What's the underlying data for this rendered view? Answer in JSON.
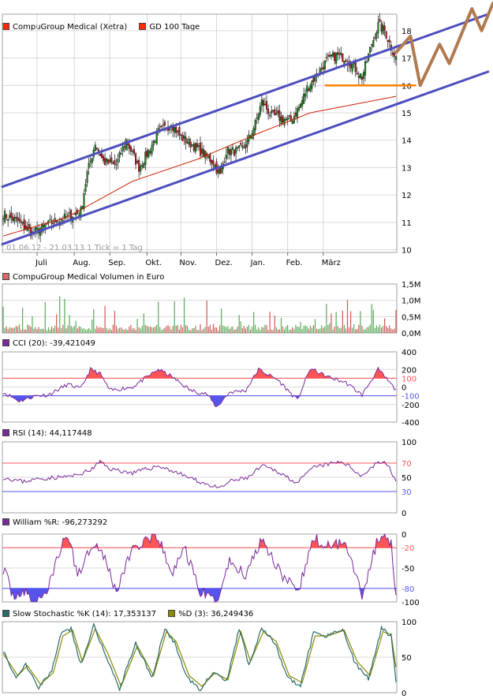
{
  "colors": {
    "grid": "#d9d9d9",
    "frame": "#a0a0a0",
    "up": "#1a7a1a",
    "down": "#b01a1a",
    "ma": "#cc2200",
    "channel": "#4d4dbf",
    "support": "#ff8000",
    "projection": "#b07a50",
    "indicator": "#7a2a9a",
    "overbought": "#ff5555",
    "oversold": "#5555ee",
    "stochK": "#2a6a6a",
    "stochD": "#8a8a00"
  },
  "chart_data": [
    {
      "type": "candlestick",
      "legend": [
        {
          "name": "CompuGroup Medical (Xetra)",
          "color": "#ff2a00"
        },
        {
          "name": "GD 100 Tage",
          "color": "#ff2a00"
        }
      ],
      "x_ticks": [
        "Juli",
        "Aug.",
        "Sep.",
        "Okt.",
        "Nov.",
        "Dez.",
        "Jan.",
        "Feb.",
        "März"
      ],
      "y_ticks": [
        "10",
        "11",
        "12",
        "13",
        "14",
        "15",
        "16",
        "17",
        "18"
      ],
      "ylim": [
        9.9,
        18.6
      ],
      "footer": "01.06.12 - 21.03.13    1 Tick = 1 Tag",
      "close_anchors": [
        [
          0,
          11.3
        ],
        [
          10,
          11.0
        ],
        [
          18,
          10.6
        ],
        [
          30,
          11.0
        ],
        [
          40,
          11.2
        ],
        [
          48,
          11.4
        ],
        [
          52,
          12.8
        ],
        [
          57,
          13.9
        ],
        [
          62,
          13.2
        ],
        [
          70,
          13.1
        ],
        [
          76,
          14.0
        ],
        [
          84,
          13.0
        ],
        [
          90,
          13.6
        ],
        [
          96,
          14.3
        ],
        [
          104,
          14.6
        ],
        [
          110,
          14.1
        ],
        [
          118,
          13.8
        ],
        [
          124,
          13.5
        ],
        [
          130,
          13.2
        ],
        [
          134,
          12.7
        ],
        [
          138,
          13.6
        ],
        [
          145,
          13.6
        ],
        [
          150,
          13.8
        ],
        [
          156,
          14.6
        ],
        [
          160,
          15.4
        ],
        [
          166,
          14.9
        ],
        [
          172,
          14.8
        ],
        [
          178,
          14.7
        ],
        [
          184,
          15.3
        ],
        [
          188,
          15.9
        ],
        [
          194,
          16.4
        ],
        [
          200,
          16.9
        ],
        [
          206,
          17.1
        ],
        [
          212,
          17.0
        ],
        [
          218,
          16.6
        ],
        [
          222,
          16.3
        ],
        [
          228,
          17.5
        ],
        [
          232,
          18.2
        ],
        [
          236,
          18.0
        ],
        [
          240,
          17.4
        ],
        [
          243,
          17.0
        ]
      ],
      "ma_anchors": [
        [
          0,
          10.5
        ],
        [
          40,
          11.2
        ],
        [
          80,
          12.5
        ],
        [
          120,
          13.3
        ],
        [
          160,
          14.3
        ],
        [
          190,
          15.0
        ],
        [
          243,
          15.6
        ]
      ],
      "channel_upper": [
        [
          0,
          12.3
        ],
        [
          300,
          18.6
        ]
      ],
      "channel_lower": [
        [
          0,
          10.2
        ],
        [
          300,
          16.5
        ]
      ],
      "support_line": [
        [
          200,
          16.0
        ],
        [
          255,
          16.0
        ]
      ],
      "projection": [
        [
          243,
          17.2
        ],
        [
          252,
          17.8
        ],
        [
          258,
          16.0
        ],
        [
          270,
          17.5
        ],
        [
          276,
          16.8
        ],
        [
          290,
          18.8
        ],
        [
          296,
          18.0
        ],
        [
          303,
          19.0
        ]
      ]
    },
    {
      "type": "bar",
      "legend": [
        {
          "name": "CompuGroup Medical Volumen in Euro",
          "color": "#dd6666"
        }
      ],
      "y_ticks": [
        "1,5M",
        "1,0M",
        "0,5M",
        "0,0M"
      ],
      "ylim": [
        0,
        1.5
      ],
      "unit": "M EUR"
    },
    {
      "type": "line",
      "legend": [
        {
          "name": "CCI (20): -39,421049",
          "color": "#7a2a9a"
        }
      ],
      "y_ticks": [
        "400",
        "200",
        "100",
        "0",
        "-100",
        "-200",
        "-400"
      ],
      "ylim": [
        -400,
        400
      ],
      "levels": [
        100,
        -100
      ],
      "anchors": [
        [
          0,
          -60
        ],
        [
          10,
          -160
        ],
        [
          20,
          -100
        ],
        [
          28,
          -90
        ],
        [
          40,
          30
        ],
        [
          48,
          -20
        ],
        [
          54,
          200
        ],
        [
          60,
          150
        ],
        [
          66,
          -40
        ],
        [
          80,
          0
        ],
        [
          96,
          200
        ],
        [
          104,
          120
        ],
        [
          116,
          -40
        ],
        [
          126,
          -80
        ],
        [
          132,
          -230
        ],
        [
          140,
          -60
        ],
        [
          150,
          -40
        ],
        [
          158,
          200
        ],
        [
          170,
          80
        ],
        [
          182,
          -150
        ],
        [
          190,
          210
        ],
        [
          200,
          120
        ],
        [
          212,
          50
        ],
        [
          222,
          -90
        ],
        [
          232,
          200
        ],
        [
          240,
          30
        ],
        [
          243,
          -39
        ]
      ]
    },
    {
      "type": "line",
      "legend": [
        {
          "name": "RSI (14): 44,117448",
          "color": "#7a2a9a"
        }
      ],
      "y_ticks": [
        "100",
        "70",
        "50",
        "30",
        "0"
      ],
      "ylim": [
        0,
        100
      ],
      "levels": [
        70,
        30
      ],
      "anchors": [
        [
          0,
          50
        ],
        [
          12,
          44
        ],
        [
          22,
          48
        ],
        [
          34,
          50
        ],
        [
          44,
          52
        ],
        [
          54,
          60
        ],
        [
          60,
          72
        ],
        [
          66,
          62
        ],
        [
          80,
          56
        ],
        [
          96,
          66
        ],
        [
          106,
          58
        ],
        [
          120,
          45
        ],
        [
          134,
          34
        ],
        [
          140,
          44
        ],
        [
          152,
          50
        ],
        [
          160,
          66
        ],
        [
          170,
          58
        ],
        [
          182,
          42
        ],
        [
          192,
          64
        ],
        [
          200,
          68
        ],
        [
          210,
          72
        ],
        [
          222,
          52
        ],
        [
          232,
          72
        ],
        [
          238,
          68
        ],
        [
          243,
          44
        ]
      ]
    },
    {
      "type": "line",
      "legend": [
        {
          "name": "William %R: -96,273292",
          "color": "#7a2a9a"
        }
      ],
      "y_ticks": [
        "0",
        "-20",
        "-50",
        "-80",
        "-100"
      ],
      "ylim": [
        -100,
        0
      ],
      "levels": [
        -20,
        -80
      ],
      "anchors": [
        [
          0,
          -50
        ],
        [
          6,
          -90
        ],
        [
          12,
          -85
        ],
        [
          20,
          -100
        ],
        [
          28,
          -80
        ],
        [
          34,
          -30
        ],
        [
          40,
          0
        ],
        [
          46,
          -60
        ],
        [
          56,
          -10
        ],
        [
          62,
          -30
        ],
        [
          70,
          -85
        ],
        [
          80,
          -20
        ],
        [
          96,
          -5
        ],
        [
          104,
          -60
        ],
        [
          112,
          -20
        ],
        [
          122,
          -85
        ],
        [
          132,
          -100
        ],
        [
          140,
          -40
        ],
        [
          150,
          -60
        ],
        [
          160,
          -5
        ],
        [
          170,
          -50
        ],
        [
          182,
          -90
        ],
        [
          192,
          -5
        ],
        [
          200,
          -20
        ],
        [
          212,
          -10
        ],
        [
          222,
          -90
        ],
        [
          232,
          -5
        ],
        [
          240,
          -10
        ],
        [
          243,
          -96
        ]
      ]
    },
    {
      "type": "line",
      "legend": [
        {
          "name": "Slow Stochastic %K (14): 17,353137",
          "color": "#2a6a6a"
        },
        {
          "name": "%D (3): 36,249436",
          "color": "#8a8a00"
        }
      ],
      "y_ticks": [
        "100",
        "50",
        "0"
      ],
      "ylim": [
        0,
        100
      ],
      "k_anchors": [
        [
          0,
          60
        ],
        [
          8,
          20
        ],
        [
          14,
          40
        ],
        [
          22,
          8
        ],
        [
          30,
          30
        ],
        [
          36,
          85
        ],
        [
          42,
          90
        ],
        [
          48,
          40
        ],
        [
          56,
          95
        ],
        [
          64,
          50
        ],
        [
          72,
          5
        ],
        [
          82,
          70
        ],
        [
          92,
          20
        ],
        [
          100,
          90
        ],
        [
          106,
          70
        ],
        [
          114,
          20
        ],
        [
          122,
          5
        ],
        [
          130,
          30
        ],
        [
          138,
          15
        ],
        [
          146,
          90
        ],
        [
          152,
          40
        ],
        [
          160,
          90
        ],
        [
          168,
          70
        ],
        [
          176,
          20
        ],
        [
          184,
          10
        ],
        [
          192,
          85
        ],
        [
          200,
          80
        ],
        [
          210,
          90
        ],
        [
          218,
          40
        ],
        [
          226,
          20
        ],
        [
          234,
          90
        ],
        [
          240,
          80
        ],
        [
          243,
          17
        ]
      ],
      "d_anchors": [
        [
          0,
          55
        ],
        [
          9,
          24
        ],
        [
          15,
          38
        ],
        [
          23,
          12
        ],
        [
          31,
          28
        ],
        [
          37,
          80
        ],
        [
          43,
          88
        ],
        [
          49,
          44
        ],
        [
          57,
          90
        ],
        [
          65,
          54
        ],
        [
          73,
          9
        ],
        [
          83,
          66
        ],
        [
          93,
          24
        ],
        [
          101,
          86
        ],
        [
          107,
          72
        ],
        [
          115,
          24
        ],
        [
          123,
          9
        ],
        [
          131,
          28
        ],
        [
          139,
          18
        ],
        [
          147,
          86
        ],
        [
          153,
          44
        ],
        [
          161,
          86
        ],
        [
          169,
          72
        ],
        [
          177,
          24
        ],
        [
          185,
          14
        ],
        [
          193,
          80
        ],
        [
          201,
          80
        ],
        [
          211,
          88
        ],
        [
          219,
          44
        ],
        [
          227,
          24
        ],
        [
          235,
          86
        ],
        [
          240,
          82
        ],
        [
          243,
          36
        ]
      ]
    }
  ]
}
